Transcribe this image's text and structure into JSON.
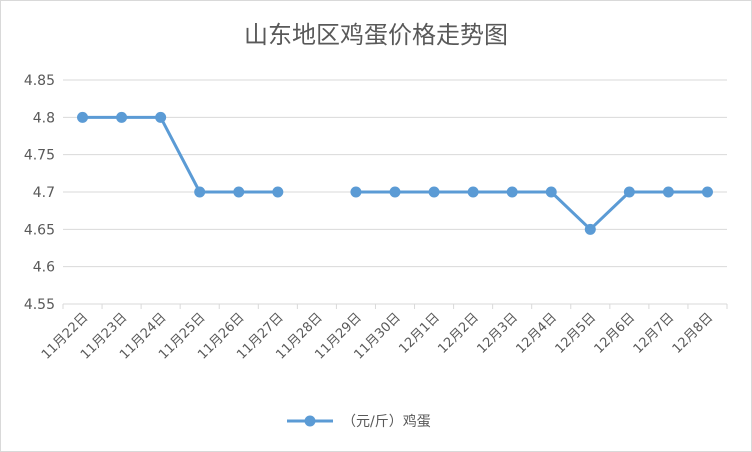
{
  "chart_data": {
    "type": "line",
    "title": "山东地区鸡蛋价格走势图",
    "xlabel": "",
    "ylabel": "",
    "categories": [
      "11月22日",
      "11月23日",
      "11月24日",
      "11月25日",
      "11月26日",
      "11月27日",
      "11月28日",
      "11月29日",
      "11月30日",
      "12月1日",
      "12月2日",
      "12月3日",
      "12月4日",
      "12月5日",
      "12月6日",
      "12月7日",
      "12月8日"
    ],
    "series": [
      {
        "name": "（元/斤）鸡蛋",
        "values": [
          4.8,
          4.8,
          4.8,
          4.7,
          4.7,
          4.7,
          null,
          4.7,
          4.7,
          4.7,
          4.7,
          4.7,
          4.7,
          4.65,
          4.7,
          4.7,
          4.7
        ]
      }
    ],
    "ylim": [
      4.55,
      4.85
    ],
    "yticks": [
      "4.55",
      "4.6",
      "4.65",
      "4.7",
      "4.75",
      "4.8",
      "4.85"
    ],
    "grid": true,
    "legend_position": "bottom",
    "colors": {
      "line": "#5b9bd5",
      "grid": "#d9d9d9",
      "text": "#595959"
    }
  }
}
